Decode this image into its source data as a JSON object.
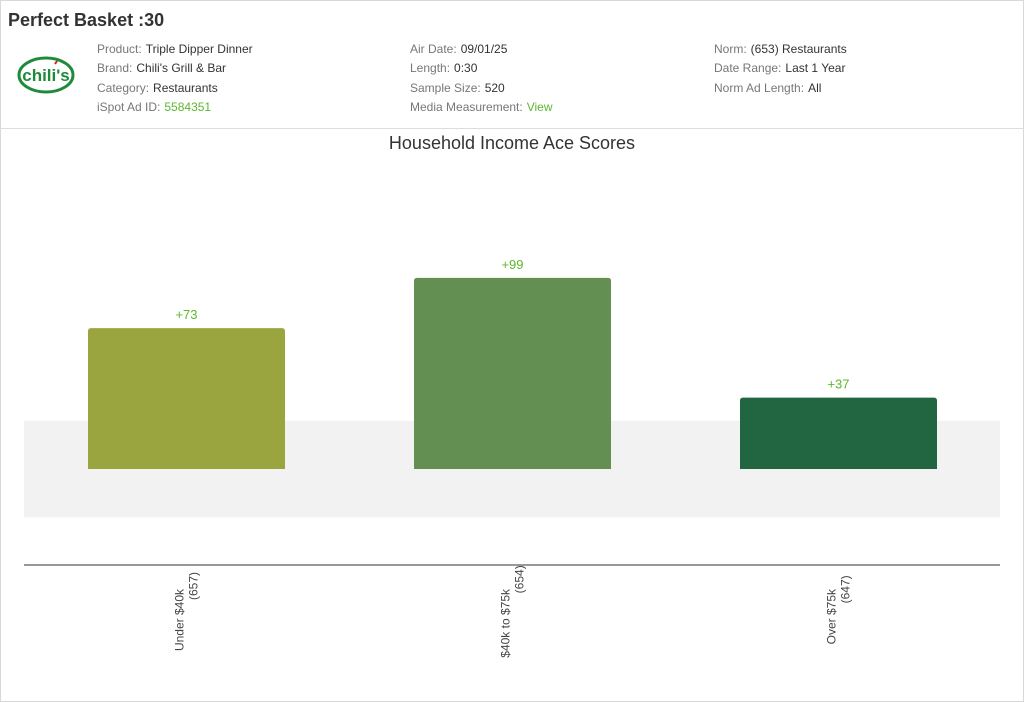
{
  "header": {
    "title": "Perfect Basket :30",
    "logo_text": "chili's",
    "col1": [
      {
        "label": "Product:",
        "value": "Triple Dipper Dinner"
      },
      {
        "label": "Brand:",
        "value": "Chili's Grill & Bar"
      },
      {
        "label": "Category:",
        "value": "Restaurants"
      },
      {
        "label": "iSpot Ad ID:",
        "value": "5584351",
        "link": true
      }
    ],
    "col2": [
      {
        "label": "Air Date:",
        "value": "09/01/25"
      },
      {
        "label": "Length:",
        "value": "0:30"
      },
      {
        "label": "Sample Size:",
        "value": "520"
      },
      {
        "label": "Media Measurement:",
        "value": "View",
        "link": true
      }
    ],
    "col3": [
      {
        "label": "Norm:",
        "value": "(653) Restaurants"
      },
      {
        "label": "Date Range:",
        "value": "Last 1 Year"
      },
      {
        "label": "Norm Ad Length:",
        "value": "All"
      }
    ]
  },
  "colors": {
    "accent": "#5cb82e",
    "bar1": "#9aa540",
    "bar2": "#648f52",
    "bar3": "#216541",
    "band": "#f2f2f2"
  },
  "chart_data": {
    "type": "bar",
    "title": "Household Income Ace Scores",
    "categories": [
      "Under $40k",
      "$40k to $75k",
      "Over $75k"
    ],
    "counts": [
      "(657)",
      "(654)",
      "(647)"
    ],
    "values": [
      73,
      99,
      37
    ],
    "labels": [
      "+73",
      "+99",
      "+37"
    ],
    "norm_band": [
      -25,
      25
    ],
    "xlabel": "",
    "ylabel": ""
  }
}
